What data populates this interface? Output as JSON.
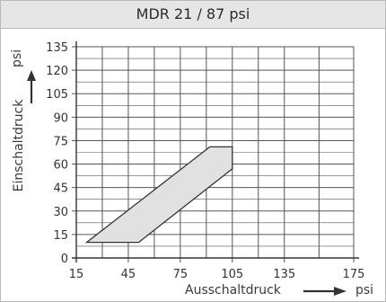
{
  "chart_data": {
    "type": "area",
    "title": "MDR 21 / 87 psi",
    "xlabel": "Ausschaltdruck",
    "xunit": "psi",
    "ylabel": "Einschaltdruck",
    "yunit": "psi",
    "x_ticks": [
      15,
      45,
      75,
      105,
      135,
      175
    ],
    "y_ticks": [
      0,
      15,
      30,
      45,
      60,
      75,
      90,
      105,
      120,
      135
    ],
    "xlim": [
      15,
      175
    ],
    "ylim": [
      0,
      135
    ],
    "grid": true,
    "region": {
      "points": [
        {
          "x": 21,
          "y": 10
        },
        {
          "x": 51,
          "y": 10
        },
        {
          "x": 105,
          "y": 57
        },
        {
          "x": 105,
          "y": 71
        },
        {
          "x": 92,
          "y": 71
        }
      ]
    },
    "colors": {
      "fill": "#e1e1e1",
      "stroke": "#333333",
      "grid": "#555555",
      "axis": "#333333",
      "title_bg": "#e6e6e6"
    }
  }
}
